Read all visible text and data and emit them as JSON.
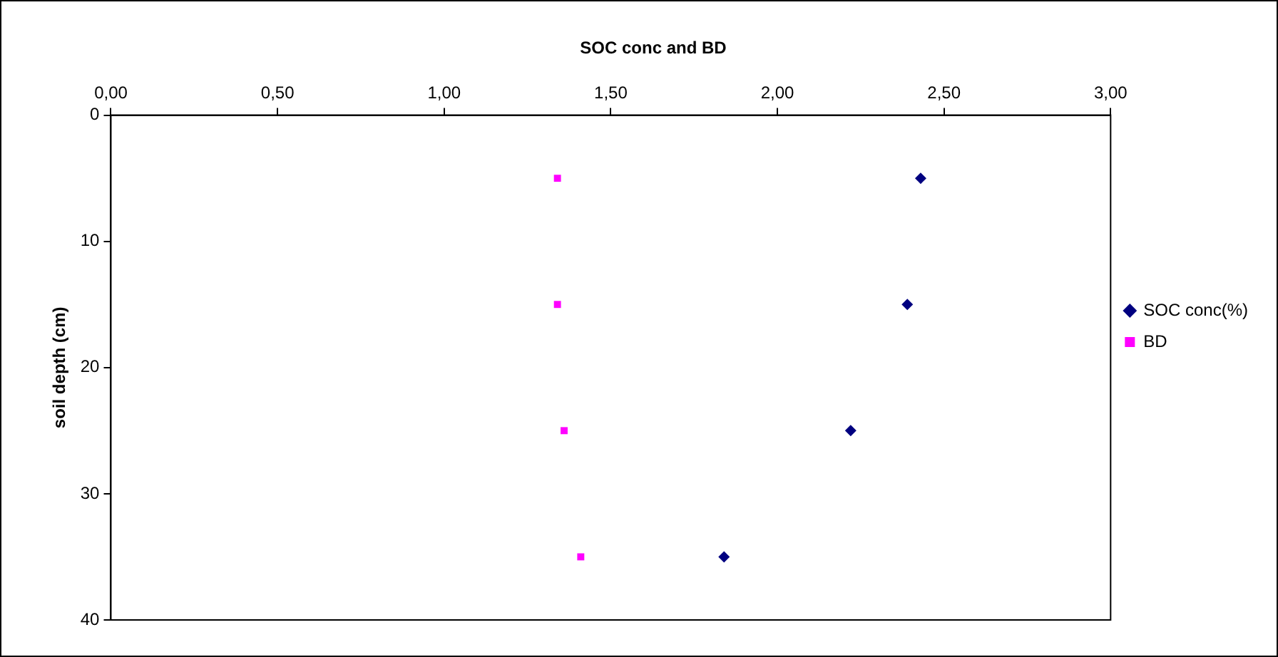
{
  "chart_data": {
    "type": "scatter",
    "title": "SOC conc and BD",
    "ylabel": "soil depth (cm)",
    "series": [
      {
        "name": "SOC conc(%)",
        "color": "#000080",
        "marker": "diamond",
        "x": [
          2.43,
          2.39,
          2.22,
          1.84
        ],
        "values": [
          5,
          15,
          25,
          35
        ]
      },
      {
        "name": "BD",
        "color": "#ff00ff",
        "marker": "square",
        "x": [
          1.34,
          1.34,
          1.36,
          1.41
        ],
        "values": [
          5,
          15,
          25,
          35
        ]
      }
    ],
    "xlim": [
      0,
      3
    ],
    "xticks": [
      {
        "value": 0,
        "label": "0,00"
      },
      {
        "value": 0.5,
        "label": "0,50"
      },
      {
        "value": 1,
        "label": "1,00"
      },
      {
        "value": 1.5,
        "label": "1,50"
      },
      {
        "value": 2,
        "label": "2,00"
      },
      {
        "value": 2.5,
        "label": "2,50"
      },
      {
        "value": 3,
        "label": "3,00"
      }
    ],
    "ylim": [
      40,
      0
    ],
    "yticks": [
      0,
      10,
      20,
      30,
      40
    ],
    "grid": false,
    "legend": "right"
  }
}
